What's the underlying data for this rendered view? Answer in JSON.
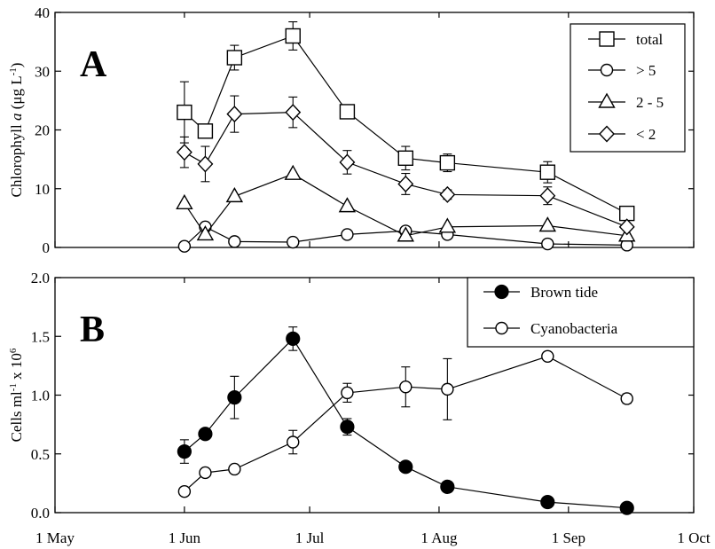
{
  "chart_data": [
    {
      "type": "line",
      "panel_label": "A",
      "ylabel_parts": {
        "pre": "Chlorophyll ",
        "ital": "a",
        "post": " (μg L",
        "sup": "-1",
        "end": ")"
      },
      "ylim": [
        0,
        40
      ],
      "yticks": [
        "0",
        "10",
        "20",
        "30",
        "40"
      ],
      "xlim": [
        "1 May",
        "1 Oct"
      ],
      "legend_position": "top-right",
      "series": [
        {
          "name": "total",
          "marker": "square",
          "x": [
            "1 Jun",
            "6 Jun",
            "13 Jun",
            "27 Jun",
            "10 Jul",
            "24 Jul",
            "3 Aug",
            "27 Aug",
            "15 Sep"
          ],
          "y": [
            23,
            19.8,
            32.3,
            36,
            23.1,
            15.2,
            14.4,
            12.8,
            5.8
          ],
          "err": [
            5.2,
            1,
            2.1,
            2.4,
            0,
            2,
            1.5,
            1.8,
            0
          ]
        },
        {
          "name": "> 5",
          "marker": "circle",
          "x": [
            "1 Jun",
            "6 Jun",
            "13 Jun",
            "27 Jun",
            "10 Jul",
            "24 Jul",
            "3 Aug",
            "27 Aug",
            "15 Sep"
          ],
          "y": [
            0.2,
            3.5,
            1,
            0.9,
            2.2,
            2.8,
            2.2,
            0.6,
            0.4
          ],
          "err": [
            0,
            0,
            0,
            0,
            0,
            0,
            0,
            0,
            0
          ]
        },
        {
          "name": "2 - 5",
          "marker": "triangle",
          "x": [
            "1 Jun",
            "6 Jun",
            "13 Jun",
            "27 Jun",
            "10 Jul",
            "24 Jul",
            "3 Aug",
            "27 Aug",
            "15 Sep"
          ],
          "y": [
            7.5,
            2.2,
            8.7,
            12.5,
            7,
            2,
            3.5,
            3.7,
            2
          ],
          "err": [
            0,
            0,
            0,
            0,
            0,
            0,
            0,
            0,
            0
          ]
        },
        {
          "name": "< 2",
          "marker": "diamond",
          "x": [
            "1 Jun",
            "6 Jun",
            "13 Jun",
            "27 Jun",
            "10 Jul",
            "24 Jul",
            "3 Aug",
            "27 Aug",
            "15 Sep"
          ],
          "y": [
            16.2,
            14.2,
            22.7,
            23,
            14.5,
            10.8,
            9,
            8.8,
            3.5
          ],
          "err": [
            2.6,
            3,
            3.1,
            2.6,
            2,
            1.8,
            0.8,
            1.5,
            0
          ]
        }
      ]
    },
    {
      "type": "line",
      "panel_label": "B",
      "ylabel_parts": {
        "pre": "Cells ml",
        "sup1": "-1",
        "mid": " x 10",
        "sup2": "6"
      },
      "ylim": [
        0,
        2
      ],
      "yticks": [
        "0.0",
        "0.5",
        "1.0",
        "1.5",
        "2.0"
      ],
      "xlim": [
        "1 May",
        "1 Oct"
      ],
      "xticks": [
        "1 May",
        "1 Jun",
        "1 Jul",
        "1 Aug",
        "1 Sep",
        "1 Oct"
      ],
      "legend_position": "top-right",
      "series": [
        {
          "name": "Brown tide",
          "marker": "filled-circle",
          "x": [
            "1 Jun",
            "6 Jun",
            "13 Jun",
            "27 Jun",
            "10 Jul",
            "24 Jul",
            "3 Aug",
            "27 Aug",
            "15 Sep"
          ],
          "y": [
            0.52,
            0.67,
            0.98,
            1.48,
            0.73,
            0.39,
            0.22,
            0.09,
            0.04
          ],
          "err": [
            0.1,
            0,
            0.18,
            0.1,
            0.07,
            0,
            0,
            0,
            0
          ]
        },
        {
          "name": "Cyanobacteria",
          "marker": "circle",
          "x": [
            "1 Jun",
            "6 Jun",
            "13 Jun",
            "27 Jun",
            "10 Jul",
            "24 Jul",
            "3 Aug",
            "27 Aug",
            "15 Sep"
          ],
          "y": [
            0.18,
            0.34,
            0.37,
            0.6,
            1.02,
            1.07,
            1.05,
            1.33,
            0.97
          ],
          "err": [
            0,
            0,
            0,
            0.1,
            0.08,
            0.17,
            0.26,
            0.03,
            0.04
          ]
        }
      ]
    }
  ]
}
